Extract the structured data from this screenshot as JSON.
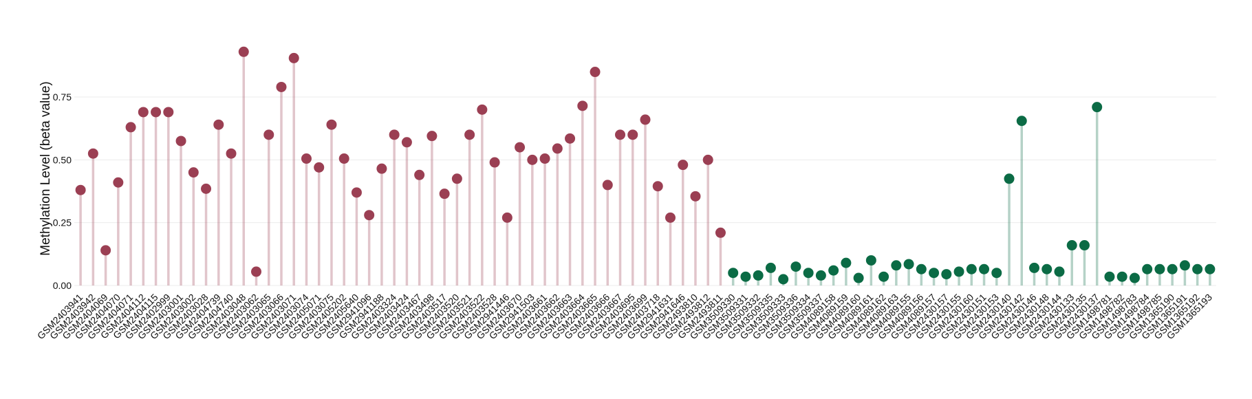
{
  "chart_data": {
    "type": "lollipop",
    "y_label": "Methylation Level (beta value)",
    "categories": [
      "GSM2403941",
      "GSM2403942",
      "GSM2404069",
      "GSM2404070",
      "GSM2404071",
      "GSM2404112",
      "GSM2404115",
      "GSM2402999",
      "GSM2403001",
      "GSM2403002",
      "GSM2403028",
      "GSM2404739",
      "GSM2404740",
      "GSM2403048",
      "GSM2403062",
      "GSM2403065",
      "GSM2403066",
      "GSM2403071",
      "GSM2403074",
      "GSM2405071",
      "GSM2403075",
      "GSM2405202",
      "GSM2405640",
      "GSM2941096",
      "GSM2941188",
      "GSM2403324",
      "GSM2403424",
      "GSM2403467",
      "GSM2403498",
      "GSM2403517",
      "GSM2403520",
      "GSM2403521",
      "GSM2403522",
      "GSM2403528",
      "GSM2941446",
      "GSM2403670",
      "GSM2941503",
      "GSM2403661",
      "GSM2403662",
      "GSM2403663",
      "GSM2403664",
      "GSM2403665",
      "GSM2403666",
      "GSM2403667",
      "GSM2403695",
      "GSM2403699",
      "GSM2403718",
      "GSM2941631",
      "GSM2941646",
      "GSM2493810",
      "GSM2493812",
      "GSM2493811",
      "GSM3509330",
      "GSM3509331",
      "GSM3509332",
      "GSM3509335",
      "GSM3509333",
      "GSM3509336",
      "GSM3509334",
      "GSM3509337",
      "GSM4089158",
      "GSM4089159",
      "GSM4089160",
      "GSM4089161",
      "GSM4089162",
      "GSM4089163",
      "GSM4089155",
      "GSM4089156",
      "GSM4089157",
      "GSM2430157",
      "GSM2430155",
      "GSM2430160",
      "GSM2430151",
      "GSM2430153",
      "GSM2430140",
      "GSM2430142",
      "GSM2430146",
      "GSM2430148",
      "GSM2430144",
      "GSM2430133",
      "GSM2430135",
      "GSM2430137",
      "GSM1498781",
      "GSM1498782",
      "GSM1498783",
      "GSM1498784",
      "GSM1498785",
      "GSM1365190",
      "GSM1365191",
      "GSM1365192",
      "GSM1365193"
    ],
    "values": [
      0.38,
      0.525,
      0.14,
      0.41,
      0.63,
      0.69,
      0.69,
      0.69,
      0.575,
      0.45,
      0.385,
      0.64,
      0.525,
      0.93,
      0.055,
      0.6,
      0.79,
      0.905,
      0.505,
      0.47,
      0.64,
      0.505,
      0.37,
      0.28,
      0.465,
      0.6,
      0.57,
      0.44,
      0.595,
      0.365,
      0.425,
      0.6,
      0.7,
      0.49,
      0.27,
      0.55,
      0.5,
      0.505,
      0.545,
      0.585,
      0.715,
      0.85,
      0.4,
      0.6,
      0.6,
      0.66,
      0.395,
      0.27,
      0.48,
      0.355,
      0.5,
      0.21,
      0.05,
      0.035,
      0.04,
      0.07,
      0.025,
      0.075,
      0.05,
      0.04,
      0.06,
      0.09,
      0.03,
      0.1,
      0.035,
      0.08,
      0.085,
      0.065,
      0.05,
      0.045,
      0.055,
      0.065,
      0.065,
      0.05,
      0.425,
      0.655,
      0.07,
      0.065,
      0.055,
      0.16,
      0.16,
      0.71,
      0.035,
      0.035,
      0.03,
      0.065,
      0.065,
      0.065,
      0.08,
      0.065,
      0.065
    ],
    "colors": [
      "#9b3f53",
      "#9b3f53",
      "#9b3f53",
      "#9b3f53",
      "#9b3f53",
      "#9b3f53",
      "#9b3f53",
      "#9b3f53",
      "#9b3f53",
      "#9b3f53",
      "#9b3f53",
      "#9b3f53",
      "#9b3f53",
      "#9b3f53",
      "#9b3f53",
      "#9b3f53",
      "#9b3f53",
      "#9b3f53",
      "#9b3f53",
      "#9b3f53",
      "#9b3f53",
      "#9b3f53",
      "#9b3f53",
      "#9b3f53",
      "#9b3f53",
      "#9b3f53",
      "#9b3f53",
      "#9b3f53",
      "#9b3f53",
      "#9b3f53",
      "#9b3f53",
      "#9b3f53",
      "#9b3f53",
      "#9b3f53",
      "#9b3f53",
      "#9b3f53",
      "#9b3f53",
      "#9b3f53",
      "#9b3f53",
      "#9b3f53",
      "#9b3f53",
      "#9b3f53",
      "#9b3f53",
      "#9b3f53",
      "#9b3f53",
      "#9b3f53",
      "#9b3f53",
      "#9b3f53",
      "#9b3f53",
      "#9b3f53",
      "#9b3f53",
      "#9b3f53",
      "#0b6b45",
      "#0b6b45",
      "#0b6b45",
      "#0b6b45",
      "#0b6b45",
      "#0b6b45",
      "#0b6b45",
      "#0b6b45",
      "#0b6b45",
      "#0b6b45",
      "#0b6b45",
      "#0b6b45",
      "#0b6b45",
      "#0b6b45",
      "#0b6b45",
      "#0b6b45",
      "#0b6b45",
      "#0b6b45",
      "#0b6b45",
      "#0b6b45",
      "#0b6b45",
      "#0b6b45",
      "#0b6b45",
      "#0b6b45",
      "#0b6b45",
      "#0b6b45",
      "#0b6b45",
      "#0b6b45",
      "#0b6b45",
      "#0b6b45",
      "#0b6b45",
      "#0b6b45",
      "#0b6b45",
      "#0b6b45",
      "#0b6b45",
      "#0b6b45",
      "#0b6b45",
      "#0b6b45",
      "#0b6b45"
    ],
    "ylim": [
      0,
      0.95
    ],
    "yticks": [
      {
        "value": 0,
        "label": "0.00"
      },
      {
        "value": 0.25,
        "label": "0.25"
      },
      {
        "value": 0.5,
        "label": "0.50"
      },
      {
        "value": 0.75,
        "label": "0.75"
      }
    ],
    "grid": true
  }
}
